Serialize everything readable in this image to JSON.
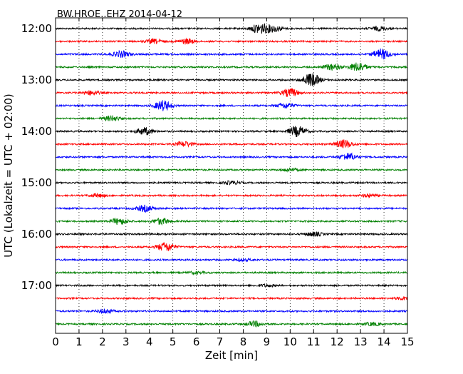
{
  "chart_data": {
    "type": "line",
    "title": "BW.HROE..EHZ 2014-04-12",
    "xlabel": "Zeit  [min]",
    "ylabel": "UTC (Lokalzeit = UTC + 02:00)",
    "xlim": [
      0,
      15
    ],
    "x_ticks": [
      "0",
      "1",
      "2",
      "3",
      "4",
      "5",
      "6",
      "7",
      "8",
      "9",
      "10",
      "11",
      "12",
      "13",
      "14",
      "15"
    ],
    "y_tick_labels": [
      "12:00",
      "13:00",
      "14:00",
      "15:00",
      "16:00",
      "17:00"
    ],
    "grid": "vertical-dotted",
    "trace_interval_minutes": 15,
    "series_colors": [
      "#000000",
      "#ff0000",
      "#0000ff",
      "#008000"
    ],
    "traces": [
      {
        "start": "12:00",
        "color": "#000000",
        "events": [
          {
            "t": 8.7,
            "amp": 1.0
          },
          {
            "t": 9.3,
            "amp": 0.6
          },
          {
            "t": 13.8,
            "amp": 0.4
          }
        ]
      },
      {
        "start": "12:15",
        "color": "#ff0000",
        "events": [
          {
            "t": 4.2,
            "amp": 0.4
          },
          {
            "t": 5.6,
            "amp": 0.5
          }
        ]
      },
      {
        "start": "12:30",
        "color": "#0000ff",
        "events": [
          {
            "t": 2.8,
            "amp": 0.6
          },
          {
            "t": 13.9,
            "amp": 1.0
          }
        ]
      },
      {
        "start": "12:45",
        "color": "#008000",
        "events": [
          {
            "t": 11.8,
            "amp": 0.6
          },
          {
            "t": 12.9,
            "amp": 0.9
          }
        ]
      },
      {
        "start": "13:00",
        "color": "#000000",
        "events": [
          {
            "t": 10.9,
            "amp": 1.3
          }
        ]
      },
      {
        "start": "13:15",
        "color": "#ff0000",
        "events": [
          {
            "t": 1.5,
            "amp": 0.4
          },
          {
            "t": 10.0,
            "amp": 0.8
          }
        ]
      },
      {
        "start": "13:30",
        "color": "#0000ff",
        "events": [
          {
            "t": 4.6,
            "amp": 1.0
          },
          {
            "t": 9.8,
            "amp": 0.5
          }
        ]
      },
      {
        "start": "13:45",
        "color": "#008000",
        "events": [
          {
            "t": 2.4,
            "amp": 0.5
          }
        ]
      },
      {
        "start": "14:00",
        "color": "#000000",
        "events": [
          {
            "t": 3.8,
            "amp": 0.7
          },
          {
            "t": 10.3,
            "amp": 1.0
          }
        ]
      },
      {
        "start": "14:15",
        "color": "#ff0000",
        "events": [
          {
            "t": 5.5,
            "amp": 0.5
          },
          {
            "t": 12.3,
            "amp": 0.8
          }
        ]
      },
      {
        "start": "14:30",
        "color": "#0000ff",
        "events": [
          {
            "t": 12.5,
            "amp": 0.7
          }
        ]
      },
      {
        "start": "14:45",
        "color": "#008000",
        "events": [
          {
            "t": 10.0,
            "amp": 0.3
          }
        ]
      },
      {
        "start": "15:00",
        "color": "#000000",
        "events": [
          {
            "t": 7.5,
            "amp": 0.3
          }
        ]
      },
      {
        "start": "15:15",
        "color": "#ff0000",
        "events": [
          {
            "t": 1.8,
            "amp": 0.3
          },
          {
            "t": 13.4,
            "amp": 0.3
          }
        ]
      },
      {
        "start": "15:30",
        "color": "#0000ff",
        "events": [
          {
            "t": 3.8,
            "amp": 0.6
          }
        ]
      },
      {
        "start": "15:45",
        "color": "#008000",
        "events": [
          {
            "t": 2.7,
            "amp": 0.6
          },
          {
            "t": 4.5,
            "amp": 0.6
          }
        ]
      },
      {
        "start": "16:00",
        "color": "#000000",
        "events": [
          {
            "t": 11.0,
            "amp": 0.4
          }
        ]
      },
      {
        "start": "16:15",
        "color": "#ff0000",
        "events": [
          {
            "t": 4.7,
            "amp": 0.9
          }
        ]
      },
      {
        "start": "16:30",
        "color": "#0000ff",
        "events": [
          {
            "t": 8.0,
            "amp": 0.2
          }
        ]
      },
      {
        "start": "16:45",
        "color": "#008000",
        "events": [
          {
            "t": 6.0,
            "amp": 0.2
          }
        ]
      },
      {
        "start": "17:00",
        "color": "#000000",
        "events": [
          {
            "t": 9.0,
            "amp": 0.2
          }
        ]
      },
      {
        "start": "17:15",
        "color": "#ff0000",
        "events": [
          {
            "t": 14.9,
            "amp": 0.3
          }
        ]
      },
      {
        "start": "17:30",
        "color": "#0000ff",
        "events": [
          {
            "t": 2.1,
            "amp": 0.4
          }
        ]
      },
      {
        "start": "17:45",
        "color": "#008000",
        "events": [
          {
            "t": 8.5,
            "amp": 0.5
          },
          {
            "t": 13.5,
            "amp": 0.3
          }
        ]
      }
    ]
  }
}
